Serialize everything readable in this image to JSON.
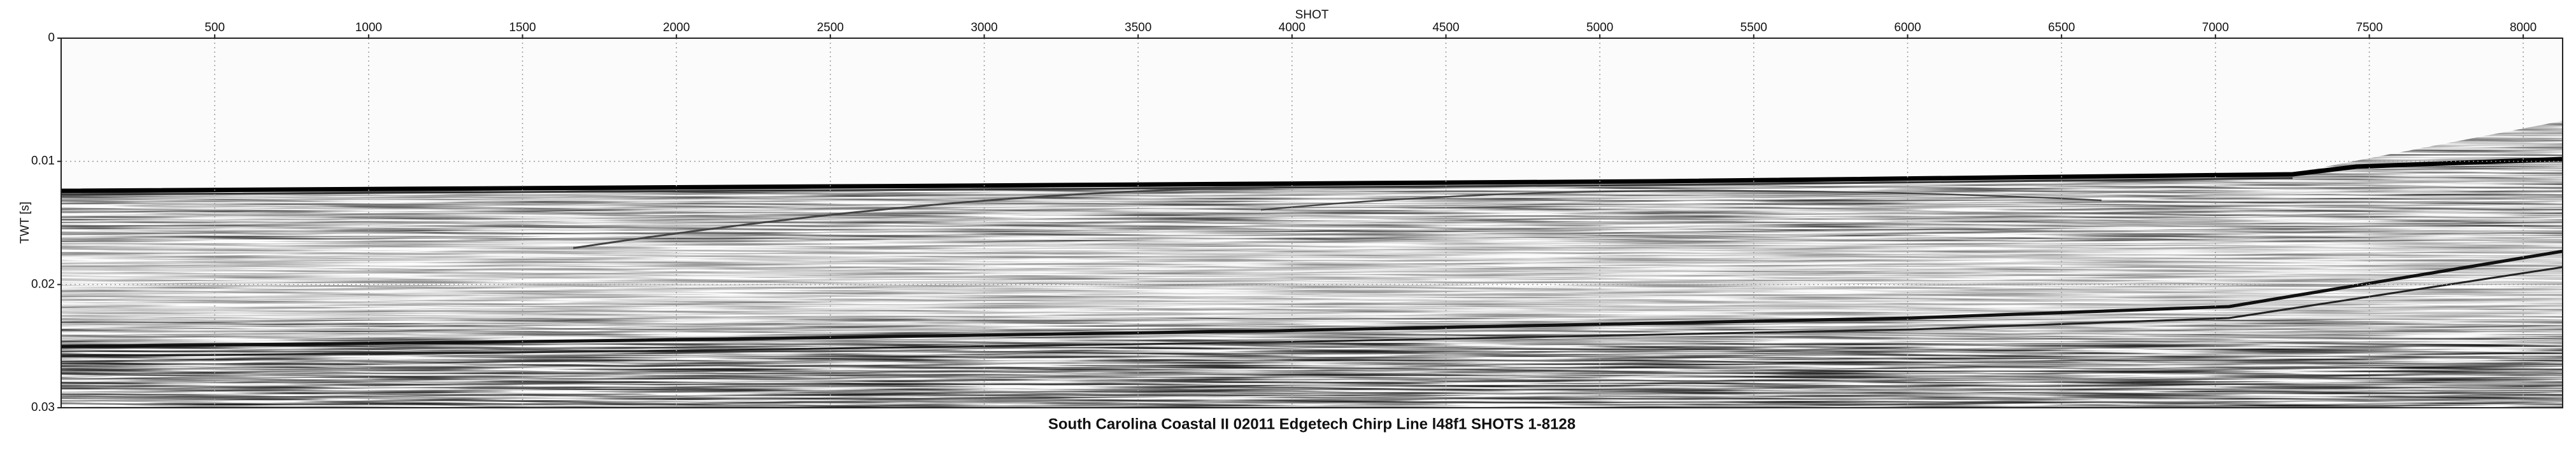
{
  "chart_data": {
    "type": "image",
    "title": "South Carolina Coastal II 02011 Edgetech Chirp Line l48f1 SHOTS 1-8128",
    "x_label": "SHOT",
    "y_label": "TWT [s]",
    "xlim": [
      1,
      8128
    ],
    "xticks": [
      500,
      1000,
      1500,
      2000,
      2500,
      3000,
      3500,
      4000,
      4500,
      5000,
      5500,
      6000,
      6500,
      7000,
      7500,
      8000
    ],
    "ylim": [
      0,
      0.03
    ],
    "yticks": [
      0,
      0.01,
      0.02,
      0.03
    ],
    "y_inverted": true,
    "grid": true,
    "colormap": "grayscale"
  }
}
